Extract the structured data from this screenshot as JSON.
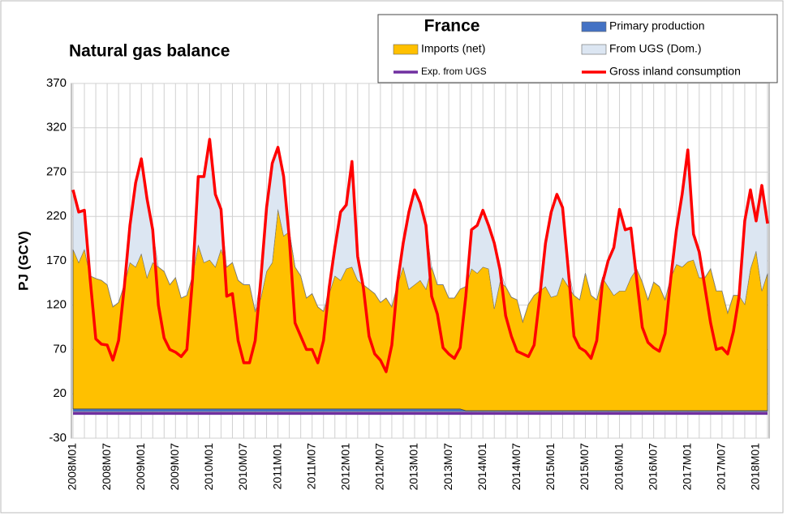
{
  "chart_data": {
    "type": "area",
    "title": "Natural gas balance",
    "y_label": "PJ (GCV)",
    "legend_title": "France",
    "legend": "top-right",
    "grid": true,
    "ylim": [
      -30,
      370
    ],
    "yticks": [
      -30,
      20,
      70,
      120,
      170,
      220,
      270,
      320,
      370
    ],
    "categories": [
      "2008M01",
      null,
      null,
      null,
      null,
      null,
      "2008M07",
      null,
      null,
      null,
      null,
      null,
      "2009M01",
      null,
      null,
      null,
      null,
      null,
      "2009M07",
      null,
      null,
      null,
      null,
      null,
      "2010M01",
      null,
      null,
      null,
      null,
      null,
      "2010M07",
      null,
      null,
      null,
      null,
      null,
      "2011M01",
      null,
      null,
      null,
      null,
      null,
      "2011M07",
      null,
      null,
      null,
      null,
      null,
      "2012M01",
      null,
      null,
      null,
      null,
      null,
      "2012M07",
      null,
      null,
      null,
      null,
      null,
      "2013M01",
      null,
      null,
      null,
      null,
      null,
      "2013M07",
      null,
      null,
      null,
      null,
      null,
      "2014M01",
      null,
      null,
      null,
      null,
      null,
      "2014M07",
      null,
      null,
      null,
      null,
      null,
      "2015M01",
      null,
      null,
      null,
      null,
      null,
      "2015M07",
      null,
      null,
      null,
      null,
      null,
      "2016M01",
      null,
      null,
      null,
      null,
      null,
      "2016M07",
      null,
      null,
      null,
      null,
      null,
      "2017M01",
      null,
      null,
      null,
      null,
      null,
      "2017M07",
      null,
      null,
      null,
      null,
      null,
      "2018M01",
      null,
      null
    ],
    "series": [
      {
        "name": "Primary production",
        "color": "#4472c4",
        "mark": "area",
        "values": [
          3,
          3,
          3,
          3,
          3,
          3,
          3,
          3,
          3,
          3,
          3,
          3,
          3,
          3,
          3,
          3,
          3,
          3,
          3,
          3,
          3,
          3,
          3,
          3,
          3,
          3,
          3,
          3,
          3,
          3,
          3,
          3,
          3,
          3,
          3,
          3,
          3,
          3,
          3,
          3,
          3,
          3,
          3,
          3,
          3,
          3,
          3,
          3,
          3,
          3,
          3,
          3,
          3,
          3,
          3,
          3,
          3,
          3,
          3,
          3,
          3,
          3,
          3,
          3,
          3,
          3,
          3,
          3,
          3,
          1,
          1,
          1,
          1,
          1,
          1,
          1,
          1,
          1,
          1,
          1,
          1,
          1,
          1,
          1,
          1,
          1,
          1,
          1,
          1,
          1,
          1,
          1,
          1,
          1,
          1,
          1,
          1,
          1,
          1,
          1,
          1,
          1,
          1,
          1,
          1,
          1,
          1,
          1,
          1,
          1,
          1,
          1,
          1,
          1,
          1,
          1,
          1,
          1,
          1,
          1,
          1,
          1,
          1
        ]
      },
      {
        "name": "Imports (net)",
        "color": "#ffc000",
        "mark": "area",
        "values": [
          180,
          165,
          180,
          150,
          147,
          145,
          140,
          115,
          120,
          140,
          165,
          160,
          175,
          148,
          165,
          160,
          155,
          140,
          148,
          125,
          128,
          150,
          185,
          165,
          168,
          160,
          180,
          160,
          165,
          145,
          140,
          140,
          110,
          125,
          155,
          165,
          225,
          195,
          200,
          160,
          150,
          125,
          130,
          115,
          110,
          130,
          150,
          145,
          158,
          160,
          145,
          140,
          135,
          130,
          120,
          125,
          115,
          140,
          160,
          135,
          140,
          145,
          135,
          160,
          140,
          140,
          125,
          125,
          135,
          140,
          160,
          155,
          162,
          160,
          115,
          145,
          140,
          128,
          125,
          100,
          120,
          130,
          135,
          140,
          128,
          130,
          150,
          140,
          130,
          125,
          155,
          130,
          125,
          150,
          140,
          130,
          135,
          135,
          150,
          160,
          145,
          125,
          145,
          140,
          125,
          150,
          165,
          162,
          168,
          170,
          150,
          150,
          160,
          135,
          135,
          110,
          130,
          130,
          120,
          160,
          180,
          135,
          155
        ]
      },
      {
        "name": "From UGS (Dom.)",
        "color": "#dce6f2",
        "mark": "area",
        "values": [
          67,
          57,
          44,
          0,
          0,
          0,
          0,
          0,
          0,
          0,
          42,
          95,
          107,
          89,
          37,
          0,
          0,
          0,
          0,
          0,
          0,
          0,
          77,
          97,
          136,
          82,
          45,
          0,
          0,
          0,
          0,
          0,
          0,
          22,
          72,
          112,
          70,
          67,
          0,
          0,
          0,
          0,
          0,
          0,
          0,
          7,
          32,
          77,
          72,
          119,
          27,
          0,
          0,
          0,
          0,
          0,
          0,
          2,
          27,
          87,
          107,
          87,
          72,
          0,
          0,
          0,
          0,
          0,
          0,
          0,
          44,
          54,
          64,
          49,
          74,
          14,
          0,
          0,
          0,
          0,
          0,
          0,
          0,
          49,
          96,
          114,
          79,
          19,
          0,
          0,
          0,
          0,
          0,
          0,
          29,
          54,
          92,
          69,
          56,
          0,
          0,
          0,
          0,
          0,
          0,
          0,
          39,
          82,
          126,
          29,
          29,
          0,
          0,
          0,
          0,
          0,
          0,
          0,
          94,
          89,
          34,
          119,
          56
        ]
      },
      {
        "name": "Exp. from UGS",
        "color": "#7030a0",
        "mark": "line",
        "values": [
          -2,
          -2,
          -2,
          -2,
          -2,
          -2,
          -2,
          -2,
          -2,
          -2,
          -2,
          -2,
          -2,
          -2,
          -2,
          -2,
          -2,
          -2,
          -2,
          -2,
          -2,
          -2,
          -2,
          -2,
          -2,
          -2,
          -2,
          -2,
          -2,
          -2,
          -2,
          -2,
          -2,
          -2,
          -2,
          -2,
          -2,
          -2,
          -2,
          -2,
          -2,
          -2,
          -2,
          -2,
          -2,
          -2,
          -2,
          -2,
          -2,
          -2,
          -2,
          -2,
          -2,
          -2,
          -2,
          -2,
          -2,
          -2,
          -2,
          -2,
          -2,
          -2,
          -2,
          -2,
          -2,
          -2,
          -2,
          -2,
          -2,
          -2,
          -2,
          -2,
          -2,
          -2,
          -2,
          -2,
          -2,
          -2,
          -2,
          -2,
          -2,
          -2,
          -2,
          -2,
          -2,
          -2,
          -2,
          -2,
          -2,
          -2,
          -2,
          -2,
          -2,
          -2,
          -2,
          -2,
          -2,
          -2,
          -2,
          -2,
          -2,
          -2,
          -2,
          -2,
          -2,
          -2,
          -2,
          -2,
          -2,
          -2,
          -2,
          -2,
          -2,
          -2,
          -2,
          -2,
          -2,
          -2,
          -2,
          -2,
          -2,
          -2,
          -2
        ]
      },
      {
        "name": "Gross inland consumption",
        "color": "#ff0000",
        "mark": "line",
        "values": [
          250,
          225,
          227,
          150,
          82,
          76,
          75,
          58,
          80,
          140,
          210,
          258,
          285,
          240,
          205,
          120,
          83,
          70,
          67,
          62,
          70,
          150,
          265,
          265,
          307,
          245,
          228,
          130,
          133,
          80,
          55,
          55,
          80,
          150,
          230,
          280,
          298,
          265,
          195,
          100,
          85,
          70,
          70,
          55,
          80,
          140,
          185,
          225,
          233,
          282,
          175,
          140,
          85,
          65,
          58,
          45,
          75,
          145,
          190,
          225,
          250,
          235,
          210,
          130,
          110,
          72,
          65,
          60,
          72,
          130,
          205,
          210,
          227,
          210,
          190,
          160,
          108,
          85,
          68,
          65,
          62,
          75,
          130,
          190,
          225,
          245,
          230,
          160,
          85,
          72,
          68,
          60,
          80,
          145,
          170,
          185,
          228,
          205,
          207,
          150,
          95,
          78,
          72,
          68,
          88,
          150,
          205,
          245,
          295,
          200,
          180,
          140,
          100,
          70,
          72,
          65,
          90,
          130,
          215,
          250,
          215,
          255,
          212
        ]
      }
    ]
  }
}
